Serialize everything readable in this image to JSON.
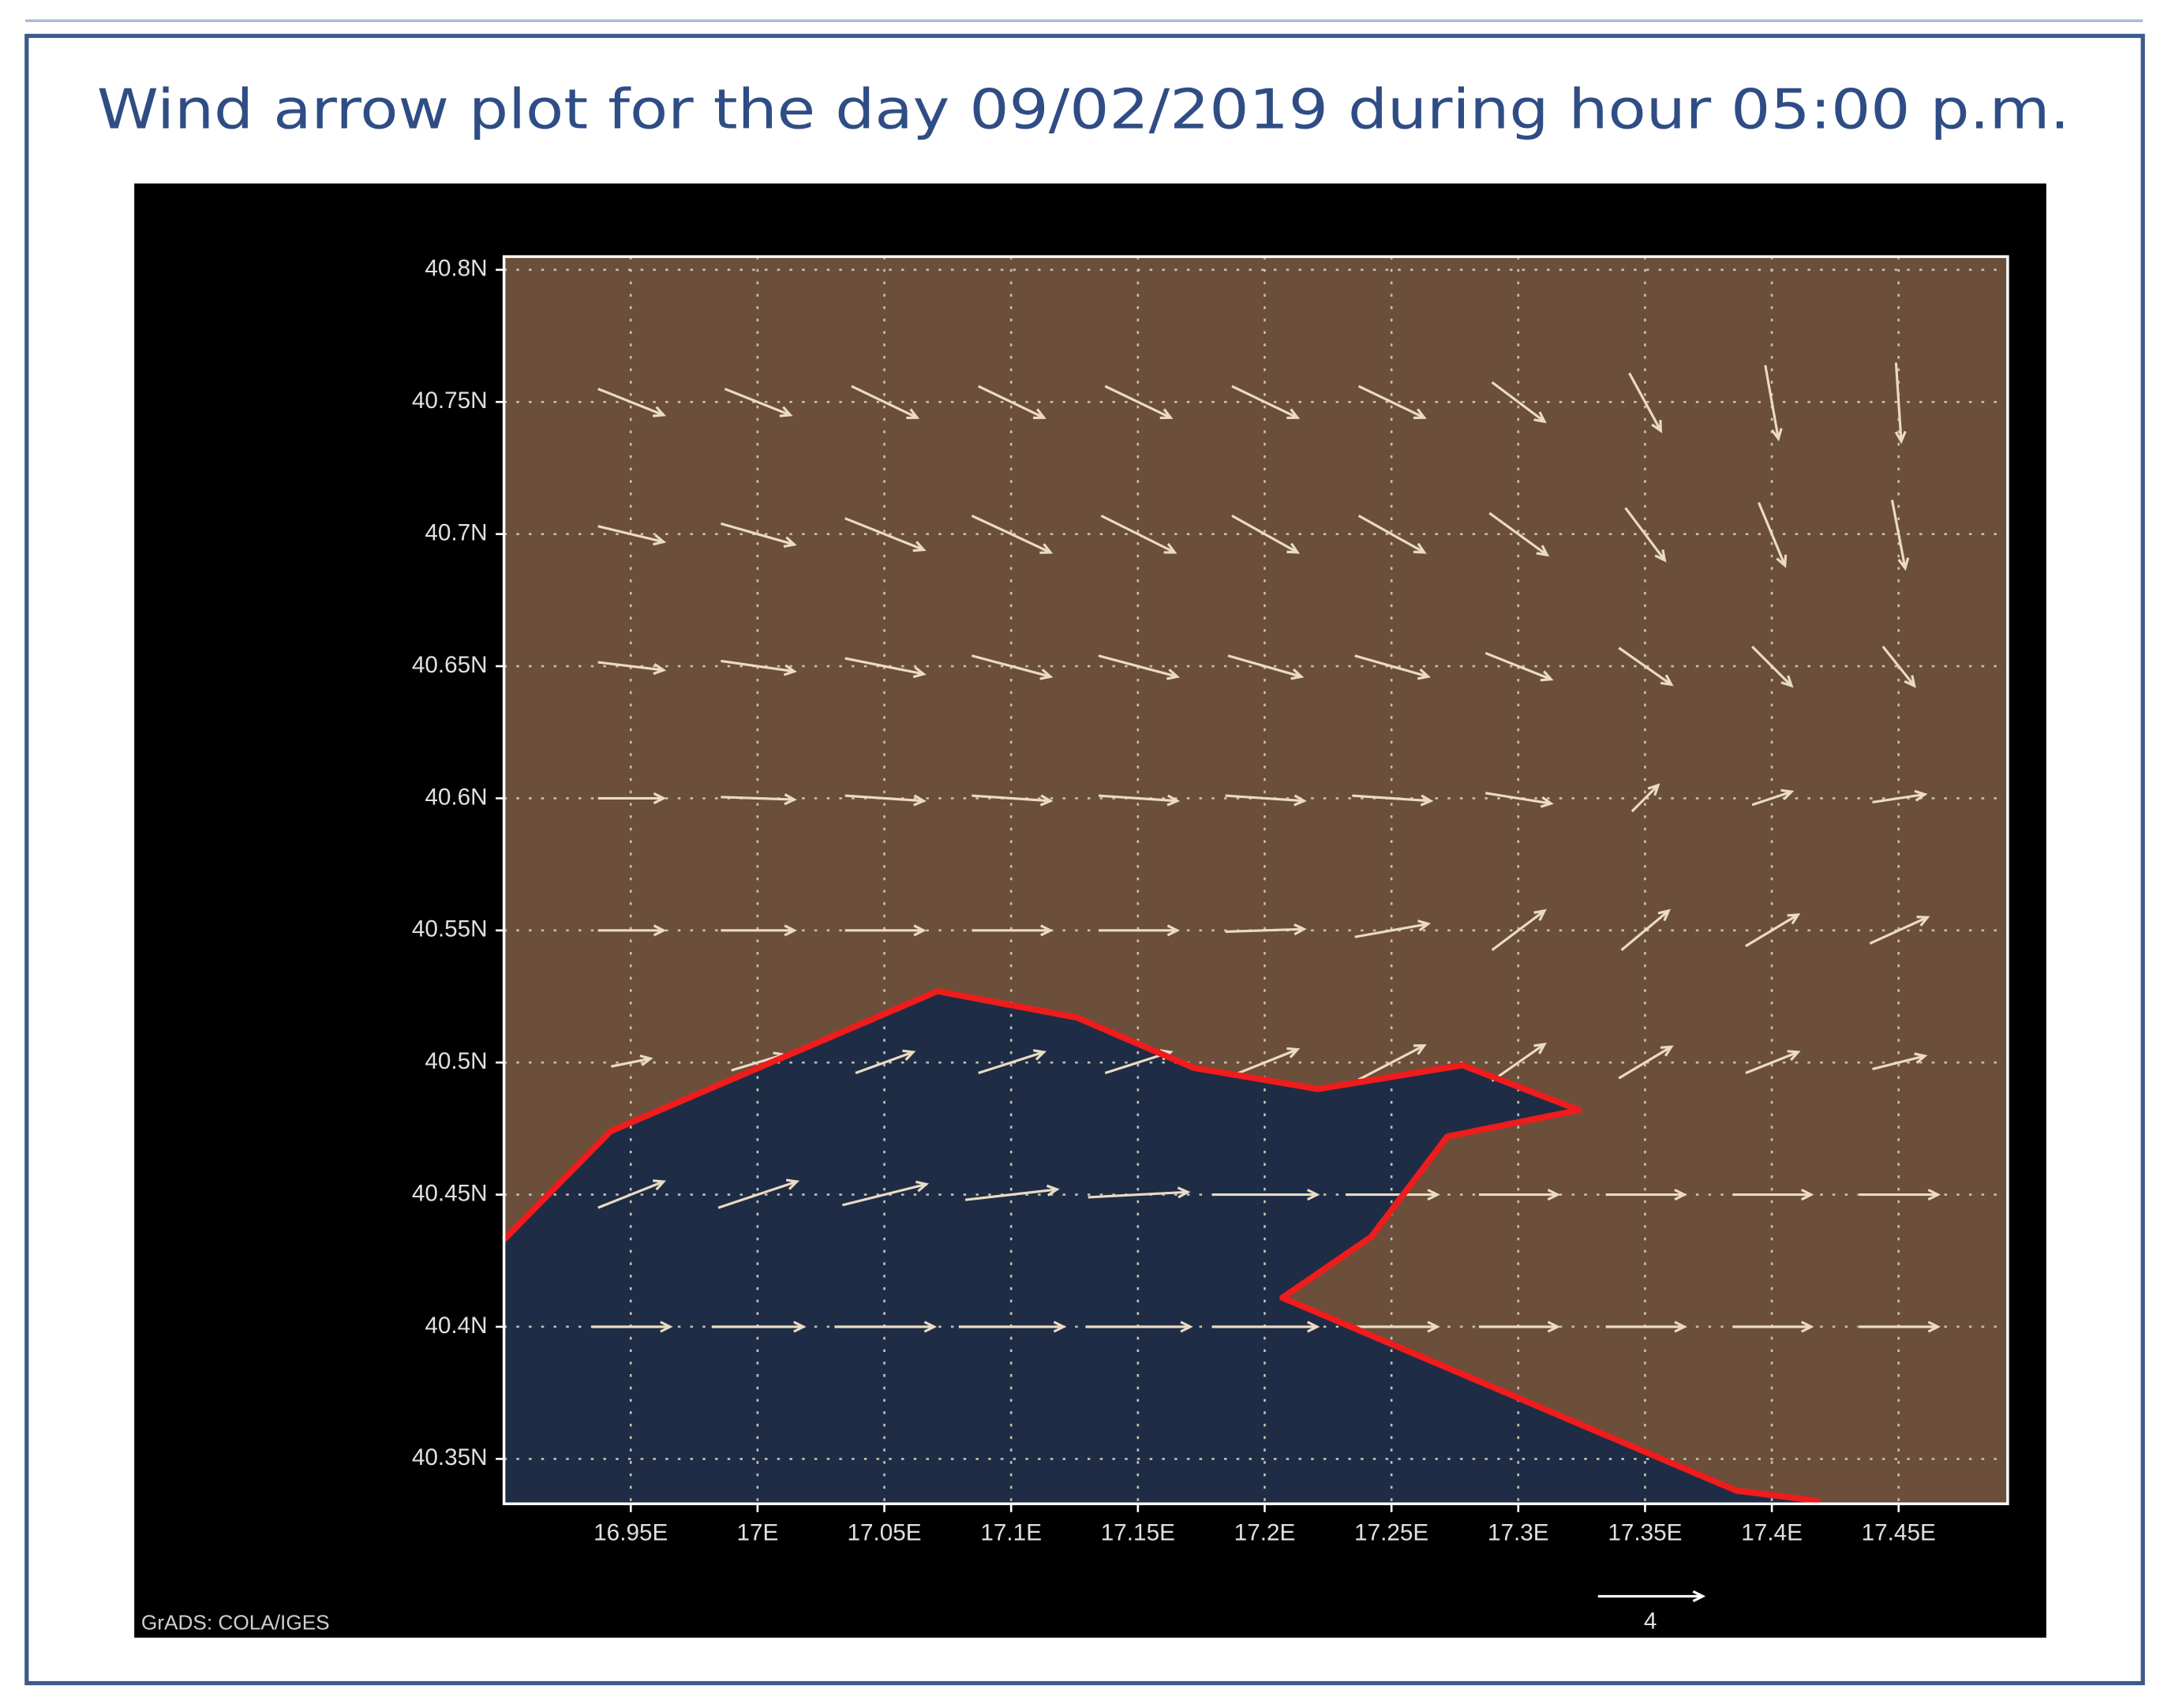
{
  "chart_data": {
    "type": "vector",
    "title": "Wind arrow plot for the day 09/02/2019 during hour 05:00 p.m.",
    "credit": "GrADS: COLA/IGES",
    "reference_vector": 4,
    "xlim": [
      16.9,
      17.493
    ],
    "ylim": [
      40.333,
      40.805
    ],
    "xticks": [
      {
        "value": 16.95,
        "label": "16.95E"
      },
      {
        "value": 17,
        "label": "17E"
      },
      {
        "value": 17.05,
        "label": "17.05E"
      },
      {
        "value": 17.1,
        "label": "17.1E"
      },
      {
        "value": 17.15,
        "label": "17.15E"
      },
      {
        "value": 17.2,
        "label": "17.2E"
      },
      {
        "value": 17.25,
        "label": "17.25E"
      },
      {
        "value": 17.3,
        "label": "17.3E"
      },
      {
        "value": 17.35,
        "label": "17.35E"
      },
      {
        "value": 17.4,
        "label": "17.4E"
      },
      {
        "value": 17.45,
        "label": "17.45E"
      }
    ],
    "yticks": [
      {
        "value": 40.35,
        "label": "40.35N"
      },
      {
        "value": 40.4,
        "label": "40.4N"
      },
      {
        "value": 40.45,
        "label": "40.45N"
      },
      {
        "value": 40.5,
        "label": "40.5N"
      },
      {
        "value": 40.55,
        "label": "40.55N"
      },
      {
        "value": 40.6,
        "label": "40.6N"
      },
      {
        "value": 40.65,
        "label": "40.65N"
      },
      {
        "value": 40.7,
        "label": "40.7N"
      },
      {
        "value": 40.75,
        "label": "40.75N"
      },
      {
        "value": 40.8,
        "label": "40.8N"
      }
    ],
    "grid": true,
    "land_color": "#6b4f3a",
    "sea_color": "#1e2d45",
    "arrow_color": "#eadbc4",
    "outline_color": "#ee1c1c",
    "sea": {
      "lon": [
        16.9,
        16.942,
        17.071,
        17.126,
        17.172,
        17.221,
        17.278,
        17.324,
        17.272,
        17.242,
        17.207,
        17.386,
        17.419,
        16.9
      ],
      "lat": [
        40.433,
        40.474,
        40.527,
        40.517,
        40.498,
        40.49,
        40.499,
        40.482,
        40.472,
        40.434,
        40.411,
        40.338,
        40.333,
        40.333
      ]
    },
    "outline": {
      "lon": [
        16.9,
        16.942,
        17.071,
        17.126,
        17.172,
        17.221,
        17.278,
        17.324,
        17.272,
        17.242,
        17.207,
        17.386,
        17.419
      ],
      "lat": [
        40.433,
        40.474,
        40.527,
        40.517,
        40.498,
        40.49,
        40.499,
        40.482,
        40.472,
        40.434,
        40.411,
        40.338,
        40.334
      ]
    },
    "lon": [
      16.95,
      17,
      17.05,
      17.1,
      17.15,
      17.2,
      17.25,
      17.3,
      17.35,
      17.4,
      17.45
    ],
    "lat": [
      40.75,
      40.7,
      40.65,
      40.6,
      40.55,
      40.5,
      40.45,
      40.4
    ],
    "u": [
      [
        2.5,
        2.5,
        2.5,
        2.5,
        2.5,
        2.5,
        2.5,
        2,
        1.2,
        0.5,
        0.2
      ],
      [
        2.5,
        2.8,
        3,
        3,
        2.8,
        2.5,
        2.5,
        2.2,
        1.5,
        1,
        0.5
      ],
      [
        2.5,
        2.8,
        3,
        3,
        3,
        2.8,
        2.8,
        2.5,
        2,
        1.5,
        1.2
      ],
      [
        2.5,
        2.8,
        3,
        3,
        3,
        3,
        3,
        2.5,
        1,
        1.5,
        2
      ],
      [
        2.5,
        2.8,
        3,
        3,
        3,
        3,
        2.8,
        2,
        1.8,
        2,
        2.2
      ],
      [
        1.5,
        2,
        2.2,
        2.5,
        2.5,
        2.5,
        2.5,
        2,
        2,
        2,
        2
      ],
      [
        2.5,
        3,
        3.2,
        3.5,
        3.8,
        4,
        3.5,
        3,
        3,
        3,
        3
      ],
      [
        3,
        3.5,
        3.8,
        4,
        4,
        4,
        3.5,
        3,
        3,
        3,
        3
      ]
    ],
    "v": [
      [
        -1,
        -1,
        -1.2,
        -1.2,
        -1.2,
        -1.2,
        -1.2,
        -1.5,
        -2.2,
        -2.8,
        -3
      ],
      [
        -0.6,
        -0.8,
        -1.2,
        -1.4,
        -1.4,
        -1.4,
        -1.4,
        -1.6,
        -2,
        -2.4,
        -2.6
      ],
      [
        -0.3,
        -0.4,
        -0.6,
        -0.8,
        -0.8,
        -0.8,
        -0.8,
        -1,
        -1.4,
        -1.5,
        -1.5
      ],
      [
        0,
        -0.1,
        -0.2,
        -0.2,
        -0.2,
        -0.2,
        -0.2,
        -0.4,
        1,
        0.5,
        0.3
      ],
      [
        0,
        0,
        0,
        0,
        0,
        0.1,
        0.5,
        1.5,
        1.5,
        1.2,
        1
      ],
      [
        0.3,
        0.6,
        0.8,
        0.8,
        0.8,
        1,
        1.3,
        1.4,
        1.2,
        0.8,
        0.5
      ],
      [
        1,
        1,
        0.8,
        0.4,
        0.2,
        0,
        0,
        0,
        0,
        0,
        0
      ],
      [
        0,
        0,
        0,
        0,
        0,
        0,
        0,
        0,
        0,
        0,
        0
      ]
    ]
  }
}
